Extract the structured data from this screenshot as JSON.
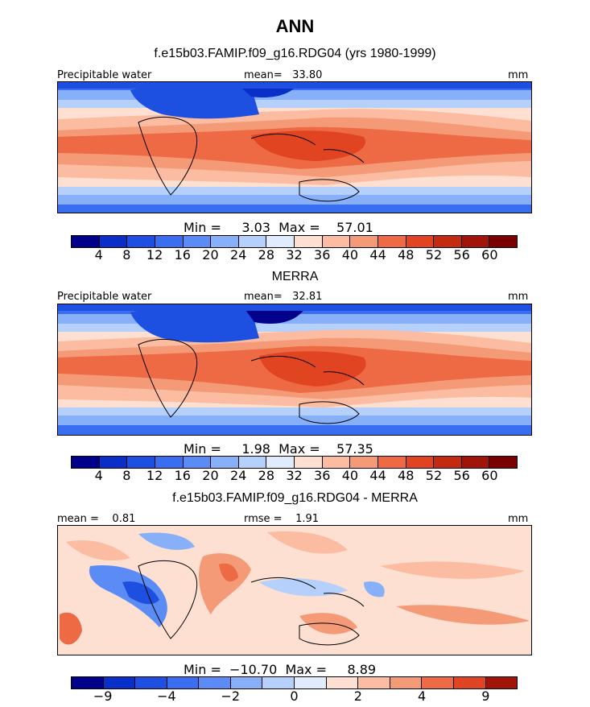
{
  "figure": {
    "title": "ANN",
    "panel1_title": "f.e15b03.FAMIP.f09_g16.RDG04 (yrs 1980-1999)",
    "panel2_title": "MERRA",
    "panel3_title": "f.e15b03.FAMIP.f09_g16.RDG04 - MERRA"
  },
  "panels": [
    {
      "left_label": "Precipitable water",
      "center_label": "mean=   33.80",
      "right_label": "mm",
      "minmax": "Min =     3.03  Max =    57.01"
    },
    {
      "left_label": "Precipitable water",
      "center_label": "mean=   32.81",
      "right_label": "mm",
      "minmax": "Min =     1.98  Max =    57.35"
    },
    {
      "left_label": "mean =    0.81",
      "center_label": "rmse =    1.91",
      "right_label": "mm",
      "minmax": "Min =  −10.70  Max =     8.89"
    }
  ],
  "chart_data": [
    {
      "type": "heatmap",
      "title": "f.e15b03.FAMIP.f09_g16.RDG04 (yrs 1980-1999)",
      "variable": "Precipitable water",
      "units": "mm",
      "mean": 33.8,
      "min": 3.03,
      "max": 57.01,
      "colorbar_labels": [
        "4",
        "8",
        "12",
        "16",
        "20",
        "24",
        "28",
        "32",
        "36",
        "40",
        "44",
        "48",
        "52",
        "56",
        "60"
      ],
      "colorbar_colors": [
        "#00008b",
        "#0a2fc8",
        "#1d4fe0",
        "#3a6ef0",
        "#5b8cf5",
        "#88b0f8",
        "#b5d0fb",
        "#e0ebfd",
        "#fde0d2",
        "#fbbca2",
        "#f59a76",
        "#ed6a44",
        "#e04420",
        "#c42a10",
        "#a0140a",
        "#7a0000"
      ]
    },
    {
      "type": "heatmap",
      "title": "MERRA",
      "variable": "Precipitable water",
      "units": "mm",
      "mean": 32.81,
      "min": 1.98,
      "max": 57.35,
      "colorbar_labels": [
        "4",
        "8",
        "12",
        "16",
        "20",
        "24",
        "28",
        "32",
        "36",
        "40",
        "44",
        "48",
        "52",
        "56",
        "60"
      ],
      "colorbar_colors": [
        "#00008b",
        "#0a2fc8",
        "#1d4fe0",
        "#3a6ef0",
        "#5b8cf5",
        "#88b0f8",
        "#b5d0fb",
        "#e0ebfd",
        "#fde0d2",
        "#fbbca2",
        "#f59a76",
        "#ed6a44",
        "#e04420",
        "#c42a10",
        "#a0140a",
        "#7a0000"
      ]
    },
    {
      "type": "heatmap",
      "title": "f.e15b03.FAMIP.f09_g16.RDG04 - MERRA",
      "units": "mm",
      "mean": 0.81,
      "rmse": 1.91,
      "min": -10.7,
      "max": 8.89,
      "colorbar_labels": [
        "−9",
        "",
        "−4",
        "",
        "−2",
        "",
        "0",
        "",
        "2",
        "",
        "4",
        "",
        "9"
      ],
      "colorbar_colors": [
        "#00008b",
        "#0a2fc8",
        "#1d4fe0",
        "#3a6ef0",
        "#5b8cf5",
        "#88b0f8",
        "#b5d0fb",
        "#e0ebfd",
        "#fde0d2",
        "#fbbca2",
        "#f59a76",
        "#ed6a44",
        "#e04420",
        "#a0140a"
      ]
    }
  ]
}
